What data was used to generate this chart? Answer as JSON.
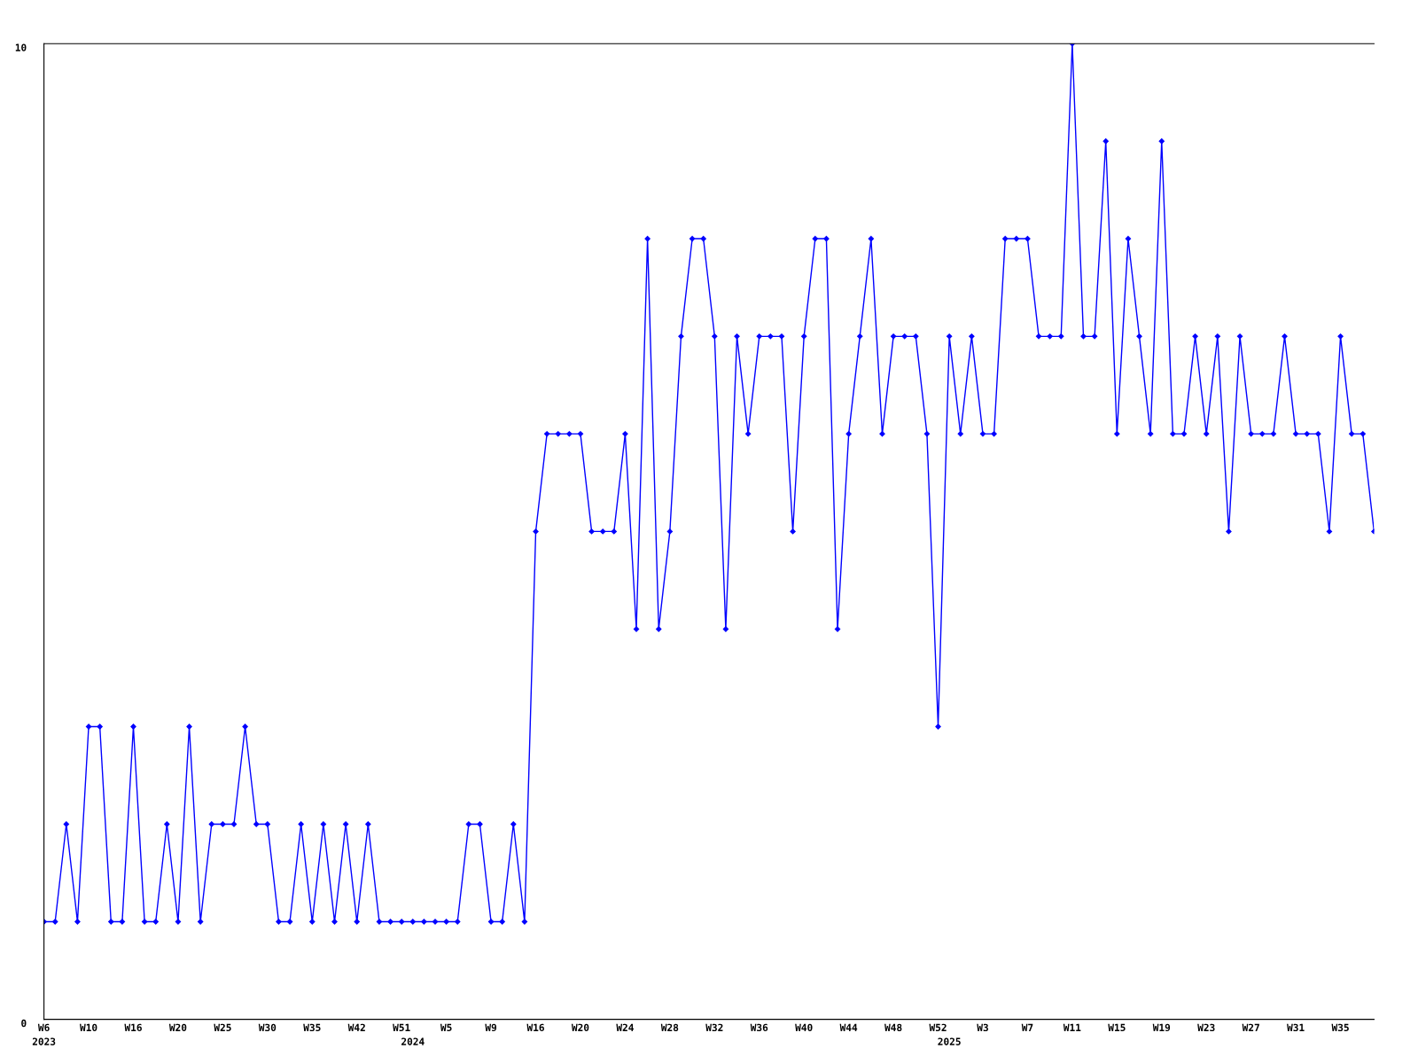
{
  "chart_data": {
    "type": "line",
    "categories": [
      "W6\n2023",
      null,
      null,
      null,
      "W10",
      null,
      null,
      null,
      "W16",
      null,
      null,
      null,
      "W20",
      null,
      null,
      null,
      "W25",
      null,
      null,
      null,
      "W30",
      null,
      null,
      null,
      "W35",
      null,
      null,
      null,
      "W42",
      null,
      null,
      null,
      "W51",
      "\n2024",
      null,
      null,
      "W5",
      null,
      null,
      null,
      "W9",
      null,
      null,
      null,
      "W16",
      null,
      null,
      null,
      "W20",
      null,
      null,
      null,
      "W24",
      null,
      null,
      null,
      "W28",
      null,
      null,
      null,
      "W32",
      null,
      null,
      null,
      "W36",
      null,
      null,
      null,
      "W40",
      null,
      null,
      null,
      "W44",
      null,
      null,
      null,
      "W48",
      null,
      null,
      null,
      "W52",
      "\n2025",
      null,
      null,
      "W3",
      null,
      null,
      null,
      "W7",
      null,
      null,
      null,
      "W11",
      null,
      null,
      null,
      "W15",
      null,
      null,
      null,
      "W19",
      null,
      null,
      null,
      "W23",
      null,
      null,
      null,
      "W27",
      null,
      null,
      null,
      "W31",
      null,
      null,
      null,
      "W35",
      null,
      null,
      null
    ],
    "series": [
      {
        "color": "#0000ff",
        "values": [
          1,
          1,
          2,
          1,
          3,
          3,
          1,
          1,
          3,
          1,
          1,
          2,
          1,
          3,
          1,
          2,
          2,
          2,
          3,
          2,
          2,
          1,
          1,
          2,
          1,
          2,
          1,
          2,
          1,
          2,
          1,
          1,
          1,
          1,
          1,
          1,
          1,
          1,
          2,
          2,
          1,
          1,
          2,
          1,
          5,
          6,
          6,
          6,
          6,
          5,
          5,
          5,
          6,
          4,
          8,
          4,
          5,
          7,
          8,
          8,
          7,
          4,
          7,
          6,
          7,
          7,
          7,
          5,
          7,
          8,
          8,
          4,
          6,
          7,
          8,
          6,
          7,
          7,
          7,
          6,
          3,
          7,
          6,
          7,
          6,
          6,
          8,
          8,
          8,
          7,
          7,
          7,
          10,
          7,
          7,
          9,
          6,
          8,
          7,
          6,
          9,
          6,
          6,
          7,
          6,
          7,
          5,
          7,
          6,
          6,
          6,
          7,
          6,
          6,
          6,
          5,
          7,
          6,
          6,
          5
        ]
      }
    ],
    "ylim": [
      0,
      10
    ],
    "yticks": [
      0,
      10
    ],
    "grid": false,
    "marker": "diamond",
    "line_style": "solid"
  }
}
